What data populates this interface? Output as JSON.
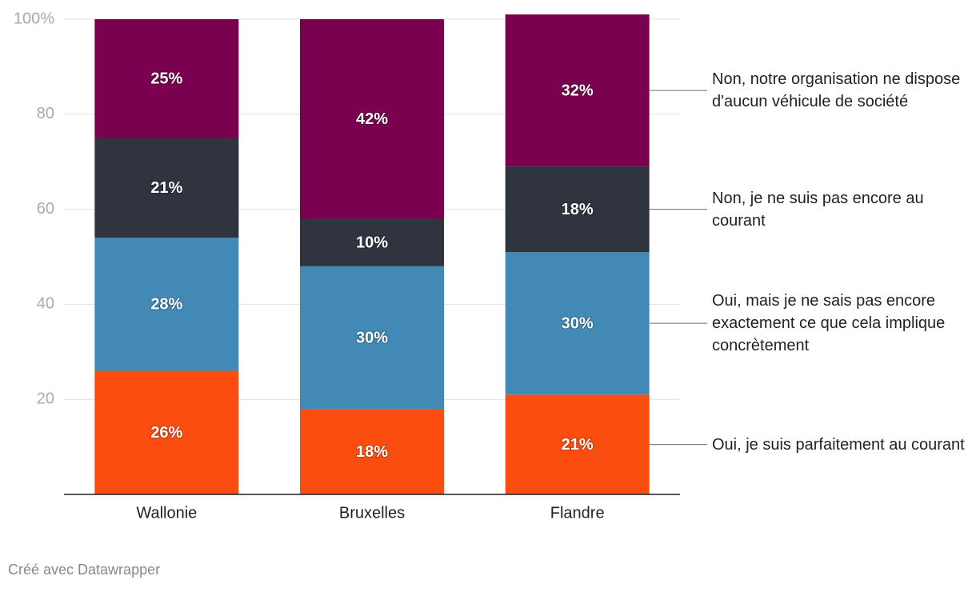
{
  "chart_data": {
    "type": "stacked_bar",
    "categories": [
      "Wallonie",
      "Bruxelles",
      "Flandre"
    ],
    "series": [
      {
        "name": "Oui, je suis parfaitement au courant",
        "color": "#fb4d0f",
        "values": [
          26,
          18,
          21
        ],
        "value_labels": [
          "26%",
          "18%",
          "21%"
        ]
      },
      {
        "name": "Oui, mais je ne sais pas encore exactement ce que cela implique concrètement",
        "color": "#4389b6",
        "values": [
          28,
          30,
          30
        ],
        "value_labels": [
          "28%",
          "30%",
          "30%"
        ]
      },
      {
        "name": "Non, je ne suis pas encore au courant",
        "color": "#30343f",
        "values": [
          21,
          10,
          18
        ],
        "value_labels": [
          "21%",
          "10%",
          "18%"
        ]
      },
      {
        "name": "Non, notre organisation ne dispose d'aucun véhicule de société",
        "color": "#7a0050",
        "values": [
          25,
          42,
          32
        ],
        "value_labels": [
          "25%",
          "42%",
          "32%"
        ]
      }
    ],
    "ylim": [
      0,
      100
    ],
    "yticks": [
      20,
      40,
      60,
      80,
      {
        "value": 100,
        "label": "100%"
      }
    ],
    "grid": true,
    "credit": "Créé avec Datawrapper"
  }
}
